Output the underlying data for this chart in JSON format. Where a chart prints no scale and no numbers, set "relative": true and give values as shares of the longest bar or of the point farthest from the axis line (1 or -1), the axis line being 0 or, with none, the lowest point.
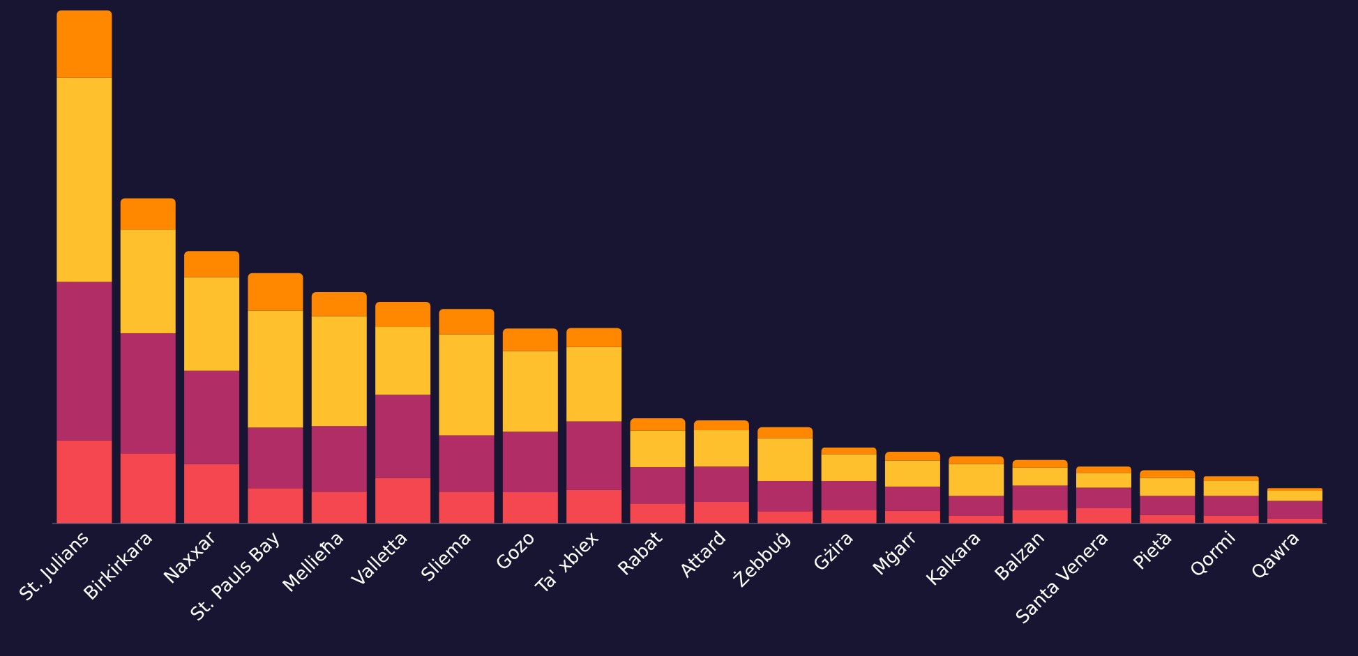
{
  "chart_data": {
    "type": "bar",
    "stacked": true,
    "relative": true,
    "categories": [
      "St. Julians",
      "Birkirkara",
      "Naxxar",
      "St. Pauls Bay",
      "Mellieħa",
      "Valletta",
      "Sliema",
      "Gozo",
      "Ta' xbiex",
      "Rabat",
      "Attard",
      "Żebbuġ",
      "Gżira",
      "Mġarr",
      "Kalkara",
      "Balzan",
      "Santa Venera",
      "Pietà",
      "Qormi",
      "Qawra"
    ],
    "series": [
      {
        "color": "#f4474f",
        "values": [
          0.162,
          0.137,
          0.116,
          0.069,
          0.062,
          0.089,
          0.062,
          0.061,
          0.066,
          0.039,
          0.042,
          0.024,
          0.027,
          0.025,
          0.015,
          0.027,
          0.03,
          0.017,
          0.015,
          0.01
        ]
      },
      {
        "color": "#b02e65",
        "values": [
          0.309,
          0.234,
          0.182,
          0.118,
          0.128,
          0.162,
          0.11,
          0.118,
          0.133,
          0.071,
          0.069,
          0.059,
          0.056,
          0.047,
          0.039,
          0.047,
          0.04,
          0.037,
          0.039,
          0.034
        ]
      },
      {
        "color": "#ffc02d",
        "values": [
          0.398,
          0.202,
          0.182,
          0.228,
          0.214,
          0.132,
          0.197,
          0.157,
          0.145,
          0.071,
          0.071,
          0.083,
          0.052,
          0.051,
          0.062,
          0.035,
          0.029,
          0.035,
          0.03,
          0.02
        ]
      },
      {
        "color": "#ff8800",
        "values": [
          0.131,
          0.061,
          0.051,
          0.073,
          0.047,
          0.049,
          0.049,
          0.044,
          0.037,
          0.024,
          0.019,
          0.022,
          0.013,
          0.017,
          0.015,
          0.015,
          0.012,
          0.015,
          0.008,
          0.005
        ]
      }
    ]
  }
}
